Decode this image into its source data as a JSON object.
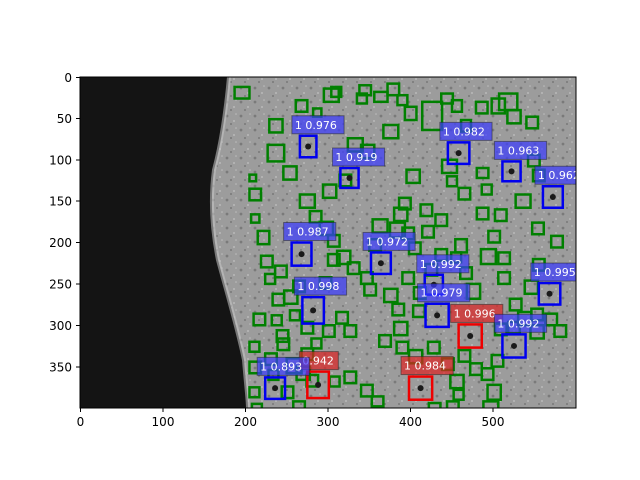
{
  "colors": {
    "confirmed": "#0000ee",
    "confirmed_fill": "#3a3aff",
    "flagged": "#ee0000",
    "flagged_fill": "#dd2222",
    "candidate": "#008000",
    "shadow": "#141414",
    "terrain": "#9a9a9a"
  },
  "axes": {
    "x_ticks": [
      "0",
      "100",
      "200",
      "300",
      "400",
      "500"
    ],
    "y_ticks": [
      "0",
      "50",
      "100",
      "150",
      "200",
      "250",
      "300",
      "350"
    ]
  },
  "chart_data": {
    "type": "image",
    "xlim": [
      0,
      600
    ],
    "ylim": [
      400,
      0
    ],
    "detections": [
      {
        "label": "1 0.976",
        "kind": "confirmed",
        "cx": 276,
        "cy": 84,
        "w": 20,
        "h": 26
      },
      {
        "label": "1 0.982",
        "kind": "confirmed",
        "cx": 458,
        "cy": 92,
        "w": 26,
        "h": 26
      },
      {
        "label": "1 0.963",
        "kind": "confirmed",
        "cx": 522,
        "cy": 114,
        "w": 22,
        "h": 24
      },
      {
        "label": "1 0.919",
        "kind": "confirmed",
        "cx": 326,
        "cy": 122,
        "w": 22,
        "h": 24
      },
      {
        "label": "1 0.962",
        "kind": "confirmed",
        "cx": 572,
        "cy": 145,
        "w": 24,
        "h": 26
      },
      {
        "label": "1 0.987",
        "kind": "confirmed",
        "cx": 268,
        "cy": 214,
        "w": 24,
        "h": 28
      },
      {
        "label": "1 0.972",
        "kind": "confirmed",
        "cx": 364,
        "cy": 225,
        "w": 24,
        "h": 26
      },
      {
        "label": "1 0.992",
        "kind": "confirmed",
        "cx": 428,
        "cy": 251,
        "w": 22,
        "h": 24
      },
      {
        "label": "1 0.995",
        "kind": "confirmed",
        "cx": 568,
        "cy": 262,
        "w": 26,
        "h": 26
      },
      {
        "label": "1 0.998",
        "kind": "confirmed",
        "cx": 282,
        "cy": 282,
        "w": 26,
        "h": 32
      },
      {
        "label": "1 0.979",
        "kind": "confirmed",
        "cx": 432,
        "cy": 288,
        "w": 28,
        "h": 28
      },
      {
        "label": "1 0.996",
        "kind": "flagged",
        "cx": 472,
        "cy": 313,
        "w": 28,
        "h": 28
      },
      {
        "label": "1 0.992",
        "kind": "confirmed",
        "cx": 525,
        "cy": 325,
        "w": 28,
        "h": 28
      },
      {
        "label": "0.942",
        "kind": "flagged",
        "cx": 288,
        "cy": 372,
        "w": 26,
        "h": 32
      },
      {
        "label": "1 0.893",
        "kind": "confirmed",
        "cx": 236,
        "cy": 376,
        "w": 24,
        "h": 26
      },
      {
        "label": "1 0.984",
        "kind": "flagged",
        "cx": 412,
        "cy": 376,
        "w": 28,
        "h": 28
      }
    ],
    "candidates": [
      [
        187,
        12,
        18,
        14
      ],
      [
        229,
        51,
        16,
        16
      ],
      [
        227,
        82,
        20,
        20
      ],
      [
        261,
        28,
        14,
        14
      ],
      [
        282,
        38,
        10,
        10
      ],
      [
        295,
        14,
        18,
        16
      ],
      [
        304,
        12,
        12,
        12
      ],
      [
        335,
        20,
        12,
        12
      ],
      [
        338,
        10,
        14,
        12
      ],
      [
        356,
        18,
        16,
        12
      ],
      [
        372,
        8,
        14,
        14
      ],
      [
        384,
        22,
        12,
        12
      ],
      [
        393,
        36,
        14,
        16
      ],
      [
        414,
        30,
        24,
        34
      ],
      [
        437,
        20,
        14,
        12
      ],
      [
        450,
        28,
        12,
        14
      ],
      [
        461,
        52,
        12,
        14
      ],
      [
        479,
        30,
        14,
        14
      ],
      [
        498,
        26,
        16,
        18
      ],
      [
        507,
        20,
        22,
        20
      ],
      [
        517,
        40,
        16,
        16
      ],
      [
        540,
        48,
        14,
        14
      ],
      [
        246,
        108,
        16,
        16
      ],
      [
        266,
        142,
        18,
        16
      ],
      [
        294,
        130,
        16,
        16
      ],
      [
        314,
        118,
        14,
        14
      ],
      [
        324,
        74,
        18,
        16
      ],
      [
        340,
        82,
        16,
        16
      ],
      [
        367,
        58,
        18,
        16
      ],
      [
        386,
        146,
        14,
        14
      ],
      [
        395,
        112,
        16,
        16
      ],
      [
        430,
        166,
        14,
        14
      ],
      [
        438,
        100,
        18,
        16
      ],
      [
        444,
        120,
        12,
        12
      ],
      [
        458,
        134,
        14,
        14
      ],
      [
        480,
        110,
        14,
        12
      ],
      [
        486,
        130,
        12,
        12
      ],
      [
        527,
        142,
        18,
        16
      ],
      [
        542,
        94,
        14,
        14
      ],
      [
        548,
        112,
        14,
        14
      ],
      [
        547,
        176,
        14,
        14
      ],
      [
        570,
        192,
        14,
        14
      ],
      [
        205,
        118,
        8,
        8
      ],
      [
        205,
        135,
        14,
        14
      ],
      [
        207,
        166,
        10,
        10
      ],
      [
        215,
        186,
        14,
        16
      ],
      [
        219,
        216,
        14,
        14
      ],
      [
        224,
        238,
        12,
        12
      ],
      [
        236,
        228,
        14,
        14
      ],
      [
        247,
        258,
        16,
        16
      ],
      [
        258,
        246,
        14,
        14
      ],
      [
        278,
        162,
        14,
        14
      ],
      [
        290,
        175,
        16,
        16
      ],
      [
        300,
        191,
        14,
        14
      ],
      [
        311,
        210,
        16,
        16
      ],
      [
        340,
        236,
        14,
        14
      ],
      [
        350,
        196,
        14,
        14
      ],
      [
        354,
        172,
        18,
        16
      ],
      [
        375,
        176,
        18,
        18
      ],
      [
        380,
        158,
        16,
        16
      ],
      [
        390,
        182,
        14,
        14
      ],
      [
        398,
        200,
        14,
        14
      ],
      [
        404,
        254,
        14,
        14
      ],
      [
        418,
        226,
        14,
        14
      ],
      [
        430,
        208,
        14,
        14
      ],
      [
        449,
        212,
        12,
        12
      ],
      [
        454,
        196,
        14,
        16
      ],
      [
        460,
        230,
        14,
        14
      ],
      [
        468,
        250,
        16,
        18
      ],
      [
        485,
        208,
        18,
        18
      ],
      [
        494,
        186,
        14,
        14
      ],
      [
        506,
        236,
        14,
        14
      ],
      [
        520,
        268,
        14,
        14
      ],
      [
        538,
        246,
        16,
        16
      ],
      [
        546,
        280,
        14,
        14
      ],
      [
        563,
        286,
        14,
        14
      ],
      [
        574,
        300,
        14,
        14
      ],
      [
        233,
        262,
        14,
        14
      ],
      [
        232,
        288,
        12,
        12
      ],
      [
        238,
        306,
        14,
        14
      ],
      [
        239,
        316,
        14,
        14
      ],
      [
        250,
        340,
        18,
        18
      ],
      [
        262,
        350,
        16,
        16
      ],
      [
        268,
        328,
        14,
        14
      ],
      [
        280,
        316,
        12,
        12
      ],
      [
        294,
        300,
        14,
        14
      ],
      [
        310,
        284,
        14,
        14
      ],
      [
        320,
        300,
        14,
        14
      ],
      [
        344,
        250,
        14,
        14
      ],
      [
        368,
        256,
        16,
        16
      ],
      [
        378,
        274,
        14,
        14
      ],
      [
        380,
        296,
        16,
        16
      ],
      [
        383,
        320,
        14,
        14
      ],
      [
        362,
        312,
        14,
        14
      ],
      [
        398,
        330,
        16,
        16
      ],
      [
        403,
        276,
        14,
        14
      ],
      [
        421,
        320,
        14,
        14
      ],
      [
        438,
        340,
        14,
        14
      ],
      [
        448,
        360,
        16,
        16
      ],
      [
        458,
        330,
        14,
        14
      ],
      [
        472,
        346,
        14,
        14
      ],
      [
        486,
        352,
        14,
        14
      ],
      [
        498,
        336,
        14,
        14
      ],
      [
        502,
        298,
        14,
        14
      ],
      [
        518,
        296,
        14,
        14
      ],
      [
        530,
        284,
        16,
        16
      ],
      [
        545,
        300,
        16,
        16
      ],
      [
        493,
        372,
        16,
        18
      ],
      [
        488,
        392,
        18,
        14
      ],
      [
        444,
        392,
        14,
        12
      ],
      [
        422,
        394,
        14,
        10
      ],
      [
        452,
        378,
        12,
        12
      ],
      [
        353,
        386,
        14,
        12
      ],
      [
        340,
        372,
        14,
        14
      ],
      [
        320,
        356,
        14,
        14
      ],
      [
        302,
        362,
        12,
        12
      ],
      [
        274,
        360,
        14,
        14
      ],
      [
        258,
        392,
        14,
        12
      ],
      [
        244,
        374,
        14,
        14
      ],
      [
        228,
        354,
        12,
        12
      ],
      [
        224,
        334,
        14,
        14
      ],
      [
        210,
        286,
        14,
        14
      ],
      [
        205,
        320,
        12,
        12
      ],
      [
        205,
        344,
        14,
        14
      ],
      [
        205,
        375,
        12,
        12
      ],
      [
        208,
        395,
        12,
        10
      ],
      [
        300,
        214,
        14,
        14
      ],
      [
        324,
        224,
        14,
        14
      ],
      [
        290,
        242,
        14,
        14
      ],
      [
        268,
        296,
        14,
        14
      ],
      [
        254,
        282,
        12,
        12
      ],
      [
        390,
        236,
        14,
        14
      ],
      [
        414,
        180,
        14,
        14
      ],
      [
        412,
        154,
        14,
        14
      ],
      [
        480,
        158,
        14,
        14
      ],
      [
        502,
        160,
        14,
        14
      ],
      [
        548,
        220,
        14,
        14
      ],
      [
        506,
        212,
        14,
        14
      ]
    ]
  }
}
